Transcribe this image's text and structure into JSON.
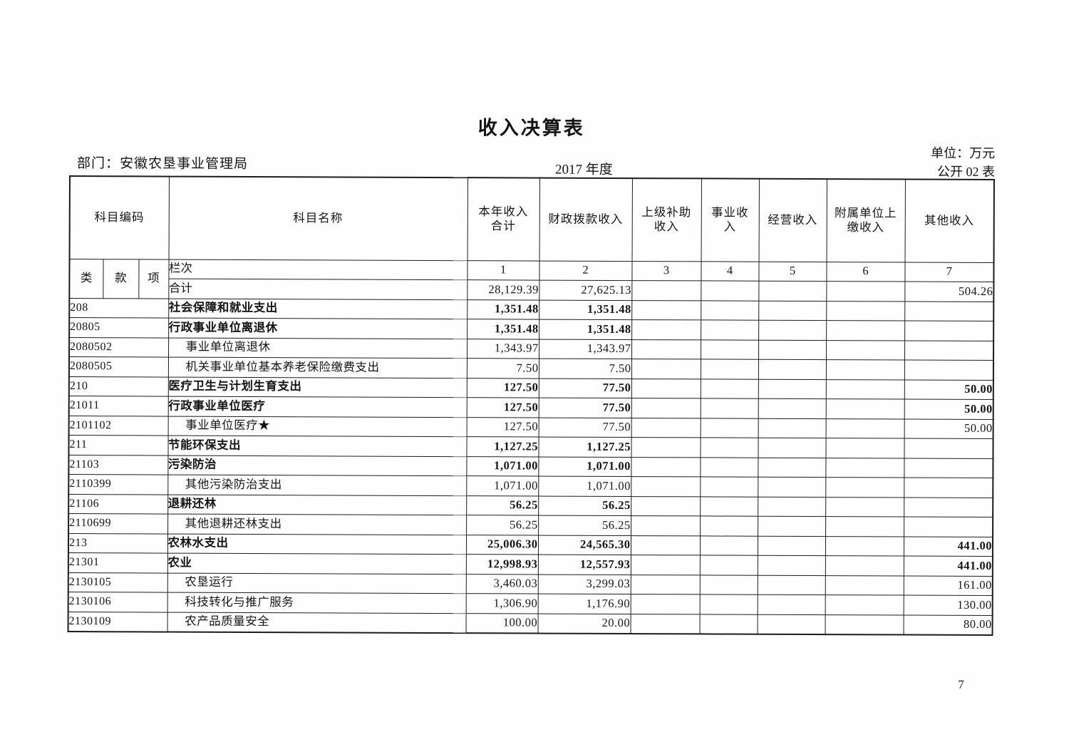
{
  "page": {
    "title": "收入决算表",
    "department": "部门：安徽农垦事业管理局",
    "year": "2017 年度",
    "unit": "单位：万元",
    "table_no": "公开 02 表",
    "page_number": "7"
  },
  "table": {
    "code_header": "科目编码",
    "code_sub_headers": [
      "类",
      "款",
      "项"
    ],
    "name_header": "科目名称",
    "value_headers": [
      "本年收入合计",
      "财政拨款收入",
      "上级补助收入",
      "事业收入",
      "经营收入",
      "附属单位上缴收入",
      "其他收入"
    ],
    "lanci_label": "栏次",
    "lanci_numbers": [
      "1",
      "2",
      "3",
      "4",
      "5",
      "6",
      "7"
    ],
    "total_row": {
      "label": "合计",
      "values": [
        "28,129.39",
        "27,625.13",
        "",
        "",
        "",
        "",
        "504.26"
      ]
    },
    "rows": [
      {
        "code": "208",
        "name": "社会保障和就业支出",
        "level": "class",
        "values": [
          "1,351.48",
          "1,351.48",
          "",
          "",
          "",
          "",
          ""
        ]
      },
      {
        "code": "20805",
        "name": "行政事业单位离退休",
        "level": "class",
        "values": [
          "1,351.48",
          "1,351.48",
          "",
          "",
          "",
          "",
          ""
        ]
      },
      {
        "code": "2080502",
        "name": "事业单位离退休",
        "level": "item",
        "values": [
          "1,343.97",
          "1,343.97",
          "",
          "",
          "",
          "",
          ""
        ]
      },
      {
        "code": "2080505",
        "name": "机关事业单位基本养老保险缴费支出",
        "level": "item",
        "values": [
          "7.50",
          "7.50",
          "",
          "",
          "",
          "",
          ""
        ]
      },
      {
        "code": "210",
        "name": "医疗卫生与计划生育支出",
        "level": "class",
        "values": [
          "127.50",
          "77.50",
          "",
          "",
          "",
          "",
          "50.00"
        ]
      },
      {
        "code": "21011",
        "name": "行政事业单位医疗",
        "level": "class",
        "values": [
          "127.50",
          "77.50",
          "",
          "",
          "",
          "",
          "50.00"
        ]
      },
      {
        "code": "2101102",
        "name": "事业单位医疗★",
        "level": "item",
        "values": [
          "127.50",
          "77.50",
          "",
          "",
          "",
          "",
          "50.00"
        ]
      },
      {
        "code": "211",
        "name": "节能环保支出",
        "level": "class",
        "values": [
          "1,127.25",
          "1,127.25",
          "",
          "",
          "",
          "",
          ""
        ]
      },
      {
        "code": "21103",
        "name": "污染防治",
        "level": "class",
        "values": [
          "1,071.00",
          "1,071.00",
          "",
          "",
          "",
          "",
          ""
        ]
      },
      {
        "code": "2110399",
        "name": "其他污染防治支出",
        "level": "item",
        "values": [
          "1,071.00",
          "1,071.00",
          "",
          "",
          "",
          "",
          ""
        ]
      },
      {
        "code": "21106",
        "name": "退耕还林",
        "level": "class",
        "values": [
          "56.25",
          "56.25",
          "",
          "",
          "",
          "",
          ""
        ]
      },
      {
        "code": "2110699",
        "name": "其他退耕还林支出",
        "level": "item",
        "values": [
          "56.25",
          "56.25",
          "",
          "",
          "",
          "",
          ""
        ]
      },
      {
        "code": "213",
        "name": "农林水支出",
        "level": "class",
        "values": [
          "25,006.30",
          "24,565.30",
          "",
          "",
          "",
          "",
          "441.00"
        ]
      },
      {
        "code": "21301",
        "name": "农业",
        "level": "class",
        "values": [
          "12,998.93",
          "12,557.93",
          "",
          "",
          "",
          "",
          "441.00"
        ]
      },
      {
        "code": "2130105",
        "name": "农垦运行",
        "level": "item",
        "values": [
          "3,460.03",
          "3,299.03",
          "",
          "",
          "",
          "",
          "161.00"
        ]
      },
      {
        "code": "2130106",
        "name": "科技转化与推广服务",
        "level": "item",
        "values": [
          "1,306.90",
          "1,176.90",
          "",
          "",
          "",
          "",
          "130.00"
        ]
      },
      {
        "code": "2130109",
        "name": "农产品质量安全",
        "level": "item",
        "values": [
          "100.00",
          "20.00",
          "",
          "",
          "",
          "",
          "80.00"
        ]
      }
    ]
  }
}
